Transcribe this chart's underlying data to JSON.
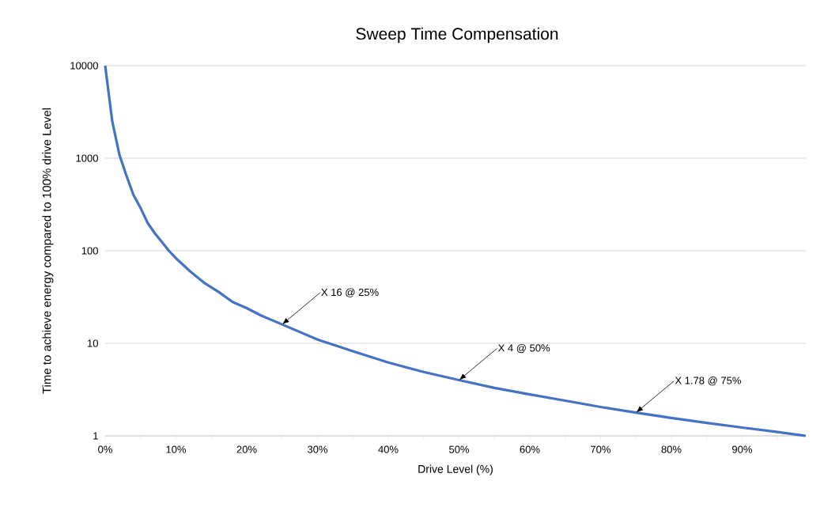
{
  "chart_data": {
    "type": "line",
    "title": "Sweep Time Compensation",
    "xlabel": "Drive Level (%)",
    "ylabel": "Time to achieve energy compared to 100% drive Level",
    "x": [
      0,
      1,
      2,
      3,
      4,
      5,
      6,
      7,
      8,
      9,
      10,
      12,
      14,
      16,
      18,
      20,
      22,
      25,
      30,
      35,
      40,
      45,
      50,
      55,
      60,
      65,
      70,
      75,
      80,
      85,
      90,
      95,
      99
    ],
    "series": [
      {
        "color": "#4472c4",
        "values": [
          10000,
          2500,
          1100,
          650,
          400,
          290,
          200,
          155,
          125,
          100,
          83,
          60,
          45,
          36,
          28,
          24,
          20,
          16,
          11,
          8.2,
          6.2,
          4.9,
          4,
          3.3,
          2.8,
          2.4,
          2.05,
          1.78,
          1.56,
          1.38,
          1.23,
          1.1,
          1
        ]
      }
    ],
    "xlim": [
      0,
      99
    ],
    "xticks": [
      {
        "value": 0,
        "label": "0%"
      },
      {
        "value": 5,
        "label": null
      },
      {
        "value": 10,
        "label": "10%"
      },
      {
        "value": 15,
        "label": null
      },
      {
        "value": 20,
        "label": "20%"
      },
      {
        "value": 25,
        "label": null
      },
      {
        "value": 30,
        "label": "30%"
      },
      {
        "value": 35,
        "label": null
      },
      {
        "value": 40,
        "label": "40%"
      },
      {
        "value": 45,
        "label": null
      },
      {
        "value": 50,
        "label": "50%"
      },
      {
        "value": 55,
        "label": null
      },
      {
        "value": 60,
        "label": "60%"
      },
      {
        "value": 65,
        "label": null
      },
      {
        "value": 70,
        "label": "70%"
      },
      {
        "value": 75,
        "label": null
      },
      {
        "value": 80,
        "label": "80%"
      },
      {
        "value": 85,
        "label": null
      },
      {
        "value": 90,
        "label": "90%"
      },
      {
        "value": 95,
        "label": null
      }
    ],
    "ylim": [
      1,
      10000
    ],
    "yticks": [
      1,
      10,
      100,
      1000,
      10000
    ],
    "log": "y",
    "grid": "y",
    "marker": "none",
    "line_style": "solid",
    "annotations": [
      {
        "text": "X 16 @ 25%",
        "x": 25,
        "y": 16
      },
      {
        "text": "X 4 @ 50%",
        "x": 50,
        "y": 4
      },
      {
        "text": "X 1.78 @ 75%",
        "x": 75,
        "y": 1.78
      }
    ]
  }
}
